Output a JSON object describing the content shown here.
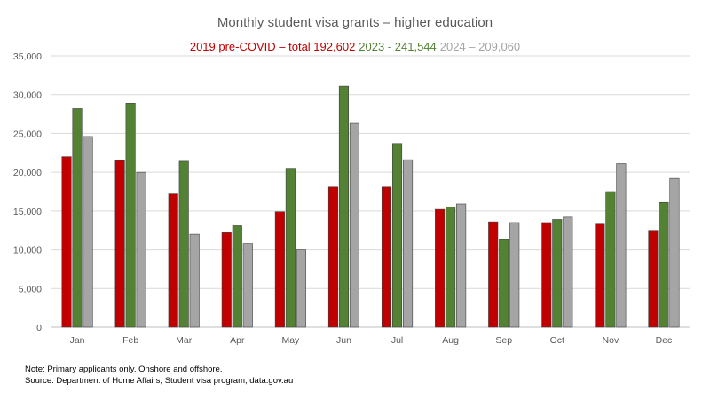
{
  "chart_data": {
    "type": "bar",
    "title": "Monthly student visa grants – higher education",
    "legend_entries": [
      {
        "text": "2019 pre-COVID – total 192,602",
        "color": "#c00000"
      },
      {
        "text": "2023  - 241,544",
        "color": "#548235"
      },
      {
        "text": "2024 – 209,060",
        "color": "#a5a5a5"
      }
    ],
    "categories": [
      "Jan",
      "Feb",
      "Mar",
      "Apr",
      "May",
      "Jun",
      "Jul",
      "Aug",
      "Sep",
      "Oct",
      "Nov",
      "Dec"
    ],
    "series": [
      {
        "name": "2019 pre-COVID",
        "color": "#c00000",
        "values": [
          22000,
          21500,
          17200,
          12200,
          14900,
          18100,
          18100,
          15200,
          13600,
          13500,
          13300,
          12500
        ]
      },
      {
        "name": "2023",
        "color": "#548235",
        "values": [
          28200,
          28900,
          21400,
          13100,
          20400,
          31100,
          23700,
          15500,
          11300,
          13900,
          17500,
          16100
        ]
      },
      {
        "name": "2024",
        "color": "#a5a5a5",
        "values": [
          24600,
          20000,
          12000,
          10800,
          10000,
          26300,
          21600,
          15900,
          13500,
          14200,
          21100,
          19200
        ]
      }
    ],
    "ylim": [
      0,
      35000
    ],
    "yticks": [
      "0",
      "5,000",
      "10,000",
      "15,000",
      "20,000",
      "25,000",
      "30,000",
      "35,000"
    ],
    "ytick_values": [
      0,
      5000,
      10000,
      15000,
      20000,
      25000,
      30000,
      35000
    ],
    "grid": true,
    "legend_position": "top"
  },
  "footnote": {
    "note": "Note: Primary applicants only. Onshore and offshore.",
    "source": "Source: Department of Home Affairs, Student visa program, data.gov.au"
  }
}
